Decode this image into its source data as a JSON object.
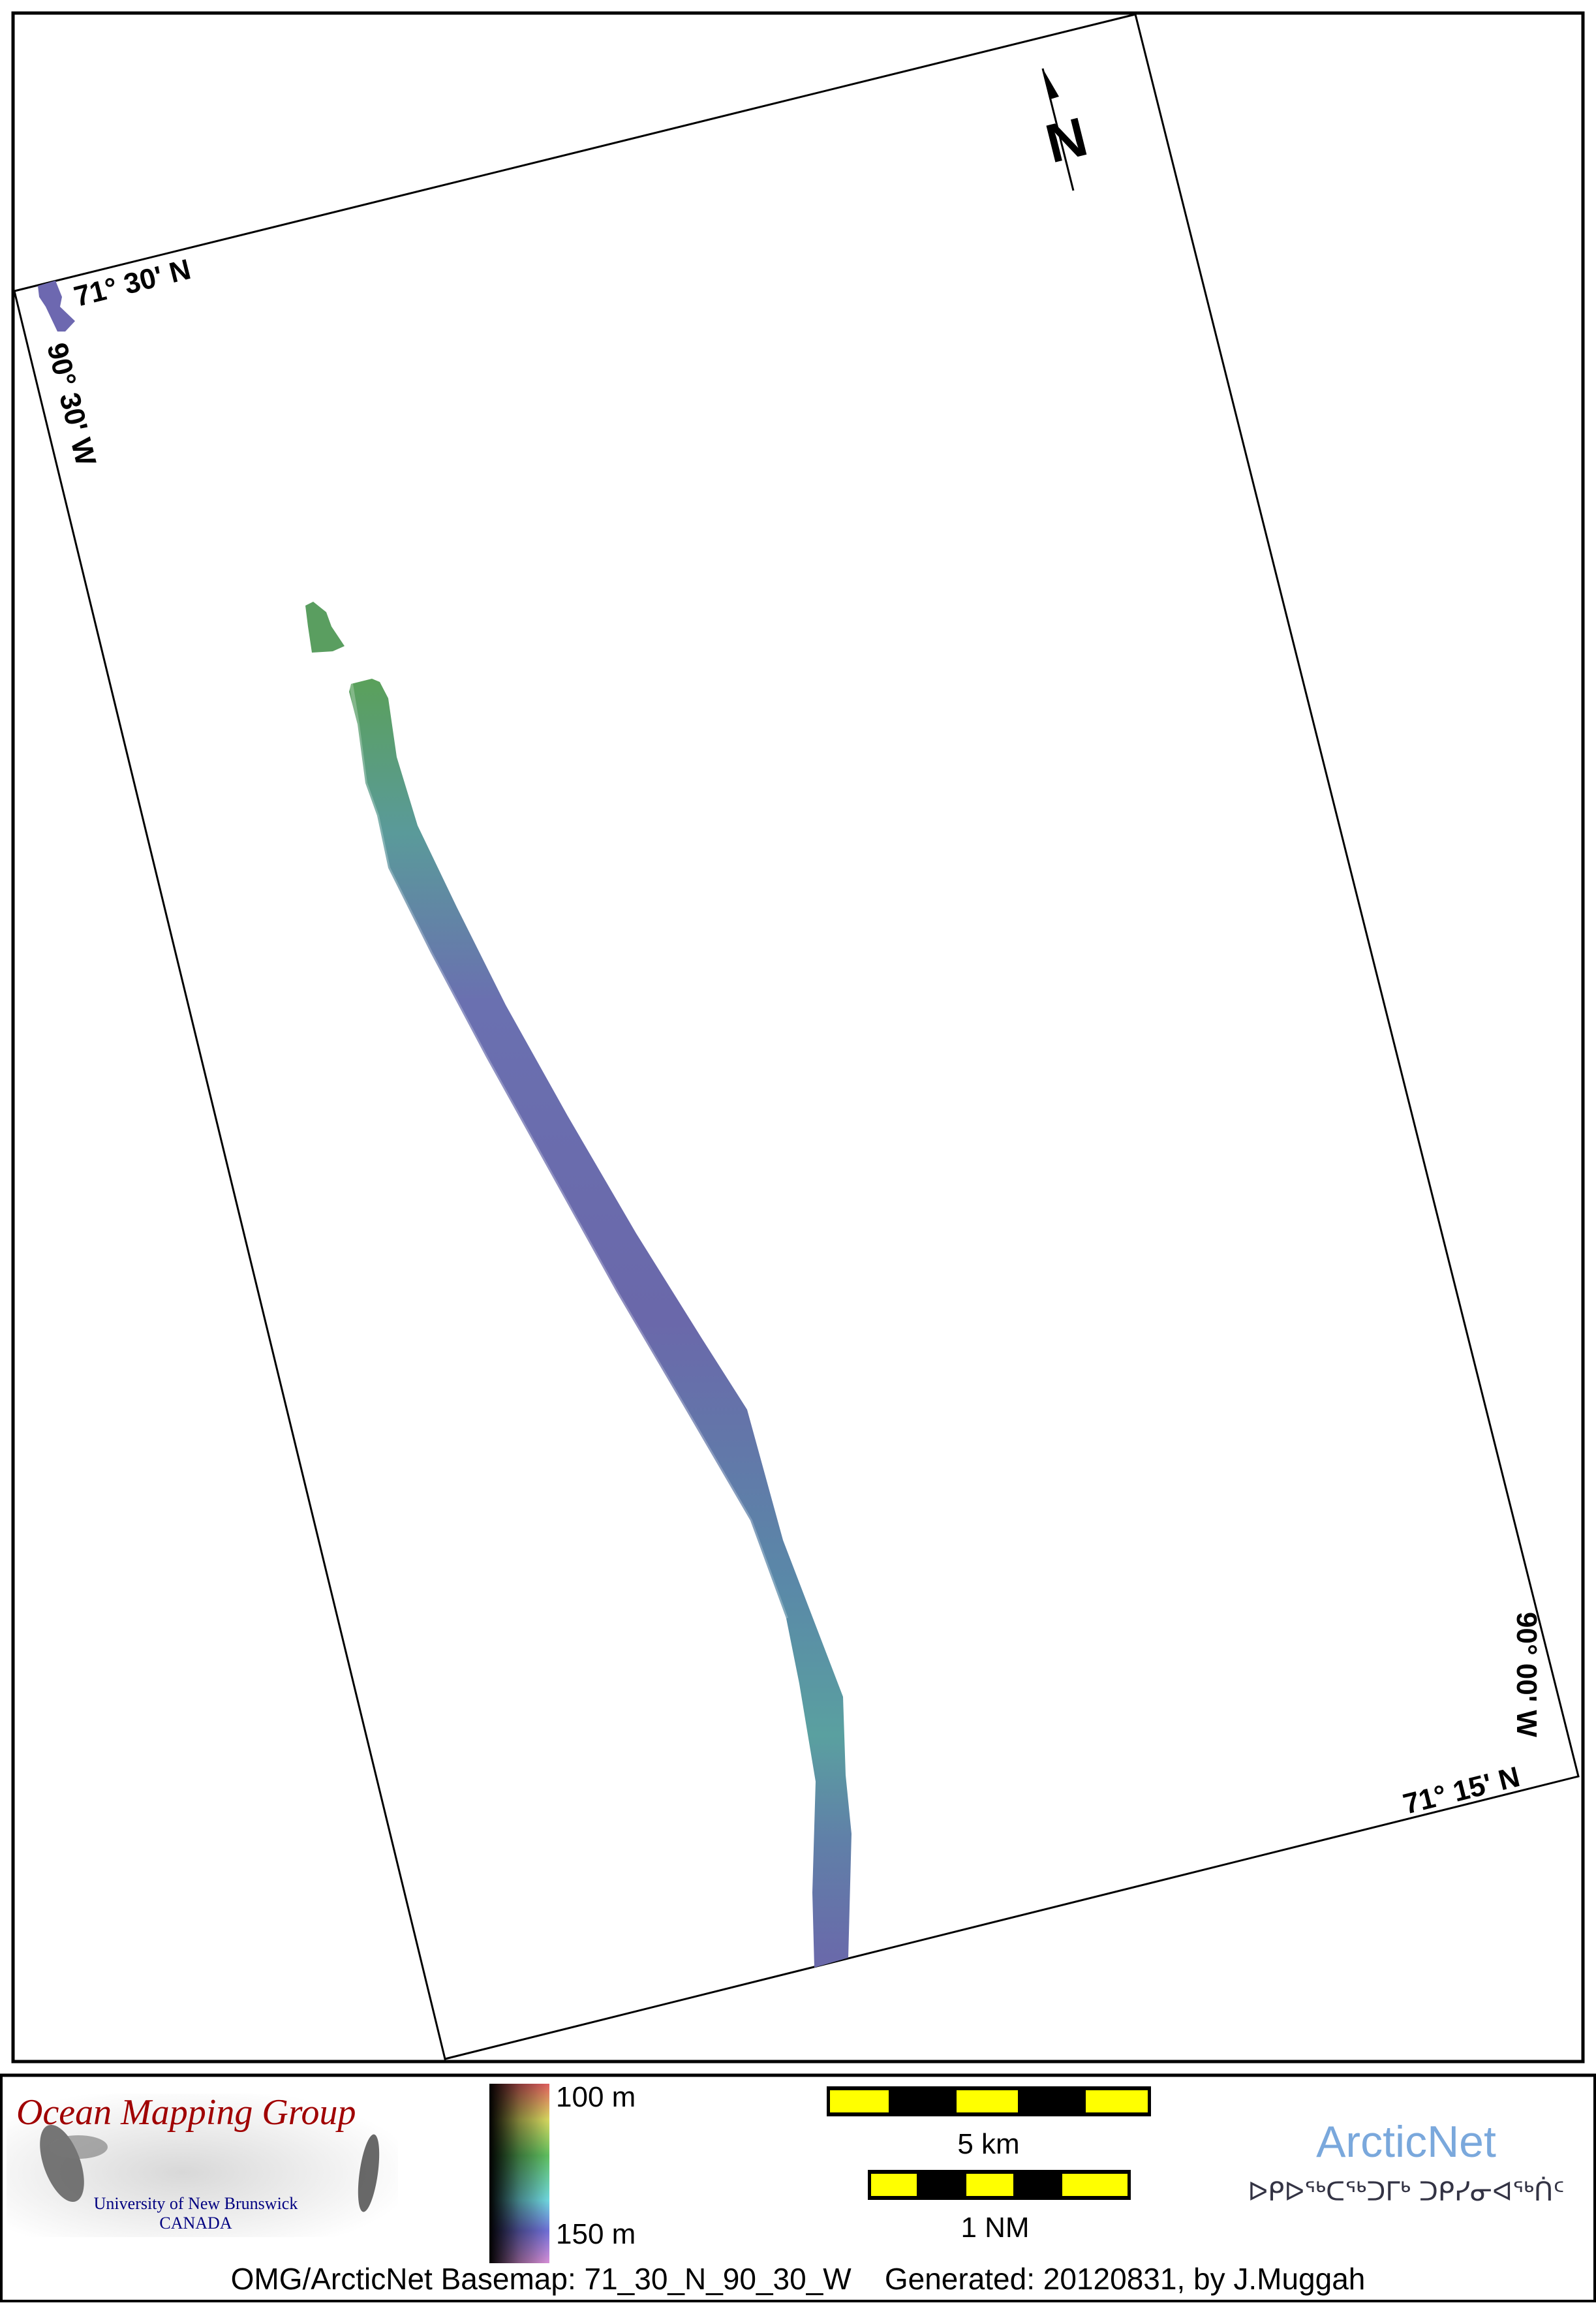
{
  "map": {
    "graticule_labels": {
      "top_lat": "71° 30' N",
      "left_lon": "90° 30' W",
      "right_lon": "90° 00' W",
      "bottom_lat": "71° 15' N"
    },
    "north_arrow_label": "N"
  },
  "legend": {
    "omg_logo": {
      "title": "Ocean Mapping Group",
      "line1": "University of New Brunswick",
      "line2": "CANADA"
    },
    "colorbar": {
      "top_label": "100 m",
      "bottom_label": "150 m"
    },
    "scale_km_label": "5 km",
    "scale_nm_label": "1 NM",
    "arcticnet": {
      "name": "ArcticNet",
      "syllabics": "ᐅᑭᐅᖅᑕᖅᑐᒥᒃ ᑐᑭᓯᓂᐊᖅᑏᑦ",
      "color": "#7aa8dc"
    },
    "footer": "OMG/ArcticNet Basemap: 71_30_N_90_30_W    Generated: 20120831, by J.Muggah"
  },
  "colors": {
    "scale_yellow": "#ffff00",
    "omg_red": "#a00000",
    "omg_blue": "#000080"
  }
}
